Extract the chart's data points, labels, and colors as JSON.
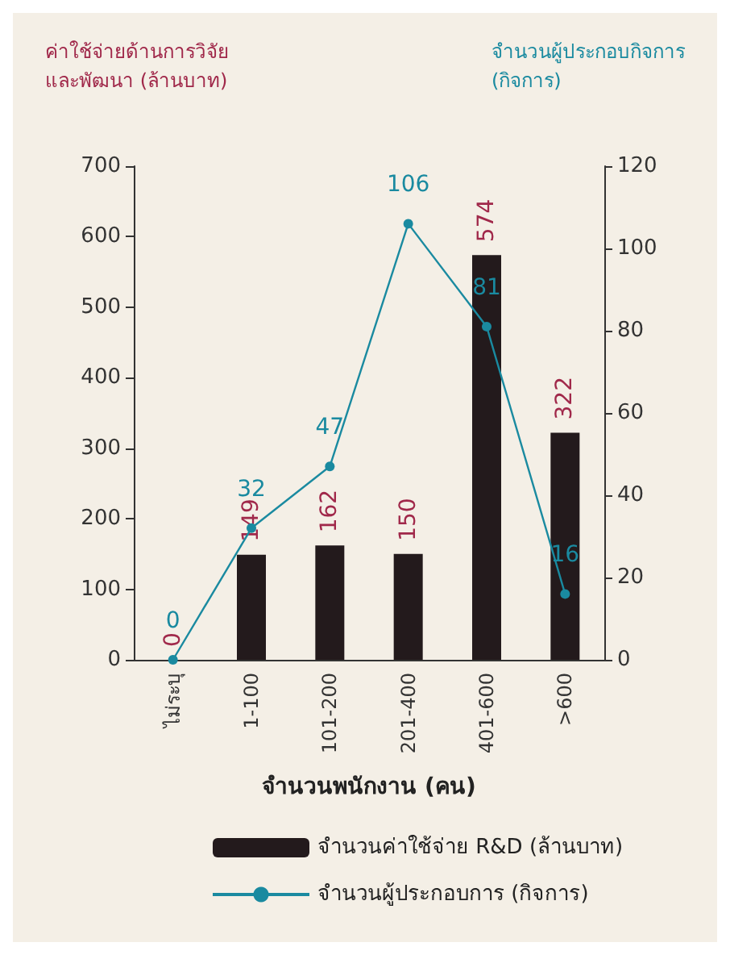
{
  "chart_data": {
    "type": "bar",
    "ylabel": "ค่าใช้จ่ายด้านการวิจัย\nและพัฒนา (ล้านบาท)",
    "y2label": "จำนวนผู้ประกอบกิจการ\n(กิจการ)",
    "xlabel": "จำนวนพนักงาน (คน)",
    "categories": [
      "ไม่ระบุ",
      "1-100",
      "101-200",
      "201-400",
      "401-600",
      ">600"
    ],
    "series": [
      {
        "name": "จำนวนค่าใช้จ่าย R&D (ล้านบาท)",
        "color": "#231a1c",
        "values": [
          0,
          149,
          162,
          150,
          574,
          322
        ]
      },
      {
        "name": "จำนวนผู้ประกอบการ (กิจการ)",
        "type": "line",
        "axis": "y2",
        "color": "#1a8aa0",
        "marker": "circle",
        "values": [
          0,
          32,
          47,
          106,
          81,
          16
        ]
      }
    ],
    "ylim": [
      0,
      700
    ],
    "yticks": [
      0,
      100,
      200,
      300,
      400,
      500,
      600,
      700
    ],
    "y2lim": [
      0,
      120
    ],
    "y2ticks": [
      0,
      20,
      40,
      60,
      80,
      100,
      120
    ],
    "data_labels": true,
    "grid": false,
    "legend": "bottom"
  }
}
